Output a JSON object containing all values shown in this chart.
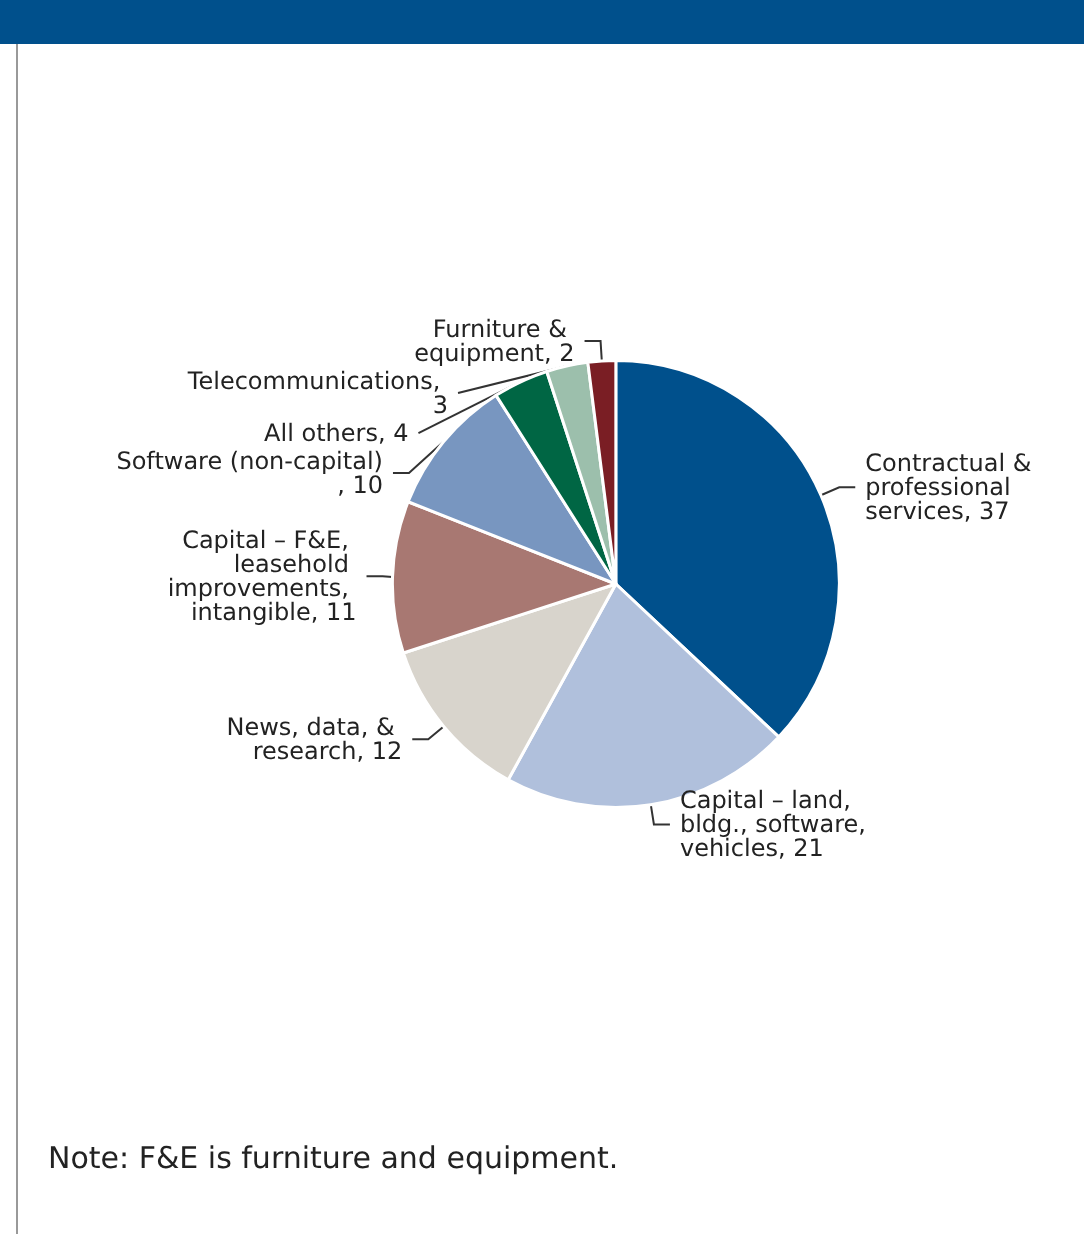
{
  "chart_data": {
    "type": "pie",
    "categories": [
      "Contractual & professional services",
      "Capital – land, bldg., software, vehicles",
      "News, data, & research",
      "Capital – F&E, leasehold improvements, intangible",
      "Software (non-capital)",
      "All others",
      "Telecommunications",
      "Furniture & equipment"
    ],
    "values": [
      37,
      21,
      12,
      11,
      10,
      4,
      3,
      2
    ],
    "colors": [
      "#00508c",
      "#b0c0dc",
      "#d8d4cc",
      "#a87872",
      "#7896c0",
      "#006644",
      "#9cbfac",
      "#7a1e24"
    ],
    "value_labels": [
      ", 37",
      ", 21",
      ", 12",
      ", 11",
      ", 10",
      ", 4",
      ", 3",
      ", 2"
    ],
    "legend": false,
    "annotations": [
      "Note: F&E is furniture and equipment."
    ]
  }
}
